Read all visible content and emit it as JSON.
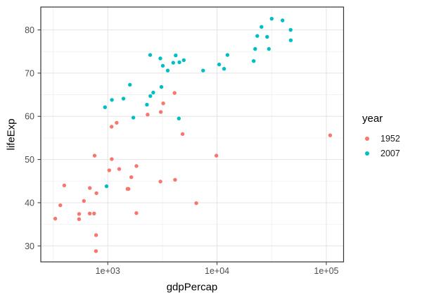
{
  "chart_data": {
    "type": "scatter",
    "title": "",
    "xlabel": "gdpPercap",
    "ylabel": "lifeExp",
    "x_scale": "log10",
    "xlim_log10": [
      2.387,
      5.158
    ],
    "ylim": [
      26.3,
      85.3
    ],
    "grid": true,
    "x_ticks": [
      {
        "value": 1000,
        "label": "1e+03"
      },
      {
        "value": 10000,
        "label": "1e+04"
      },
      {
        "value": 100000,
        "label": "1e+05"
      }
    ],
    "x_minor_ticks": [
      316.23,
      3162.28,
      31622.78
    ],
    "y_ticks": [
      {
        "value": 30,
        "label": "30"
      },
      {
        "value": 40,
        "label": "40"
      },
      {
        "value": 50,
        "label": "50"
      },
      {
        "value": 60,
        "label": "60"
      },
      {
        "value": 70,
        "label": "70"
      },
      {
        "value": 80,
        "label": "80"
      }
    ],
    "y_minor_ticks": [
      35,
      45,
      55,
      65,
      75
    ],
    "legend": {
      "title": "year",
      "position": "right"
    },
    "series": [
      {
        "name": "1952",
        "color": "#F8766D",
        "points": [
          [
            779,
            28.8
          ],
          [
            9867,
            50.9
          ],
          [
            684,
            37.5
          ],
          [
            368,
            39.4
          ],
          [
            400,
            44.0
          ],
          [
            3054,
            61.0
          ],
          [
            547,
            37.4
          ],
          [
            750,
            37.5
          ],
          [
            3035,
            44.9
          ],
          [
            4130,
            45.3
          ],
          [
            4087,
            65.4
          ],
          [
            3217,
            63.0
          ],
          [
            1547,
            43.2
          ],
          [
            1088,
            50.1
          ],
          [
            1031,
            47.5
          ],
          [
            108382,
            55.6
          ],
          [
            4835,
            55.9
          ],
          [
            1831,
            48.5
          ],
          [
            787,
            42.2
          ],
          [
            331,
            36.3
          ],
          [
            546,
            36.2
          ],
          [
            1828,
            37.6
          ],
          [
            685,
            43.4
          ],
          [
            1273,
            47.8
          ],
          [
            6460,
            39.9
          ],
          [
            2315,
            60.4
          ],
          [
            1084,
            57.6
          ],
          [
            1643,
            45.9
          ],
          [
            1207,
            58.5
          ],
          [
            758,
            50.9
          ],
          [
            605,
            40.4
          ],
          [
            1516,
            43.2
          ],
          [
            782,
            32.5
          ]
        ]
      },
      {
        "name": "2007",
        "color": "#00BFC4",
        "points": [
          [
            975,
            43.8
          ],
          [
            29796,
            75.6
          ],
          [
            1391,
            64.1
          ],
          [
            1714,
            59.7
          ],
          [
            4959,
            73.0
          ],
          [
            39725,
            82.2
          ],
          [
            2452,
            64.7
          ],
          [
            3541,
            70.6
          ],
          [
            11606,
            71.0
          ],
          [
            4471,
            59.5
          ],
          [
            25523,
            80.7
          ],
          [
            31656,
            82.6
          ],
          [
            4519,
            72.5
          ],
          [
            1593,
            67.3
          ],
          [
            23348,
            78.6
          ],
          [
            47307,
            77.6
          ],
          [
            10461,
            72.0
          ],
          [
            12452,
            74.2
          ],
          [
            3096,
            66.8
          ],
          [
            944,
            62.1
          ],
          [
            1091,
            63.8
          ],
          [
            22316,
            75.6
          ],
          [
            2606,
            65.5
          ],
          [
            3190,
            71.7
          ],
          [
            21655,
            72.8
          ],
          [
            47143,
            80.0
          ],
          [
            3970,
            72.4
          ],
          [
            4184,
            74.1
          ],
          [
            28718,
            78.4
          ],
          [
            7458,
            70.6
          ],
          [
            2442,
            74.2
          ],
          [
            3025,
            73.4
          ],
          [
            2281,
            62.7
          ]
        ]
      }
    ]
  }
}
